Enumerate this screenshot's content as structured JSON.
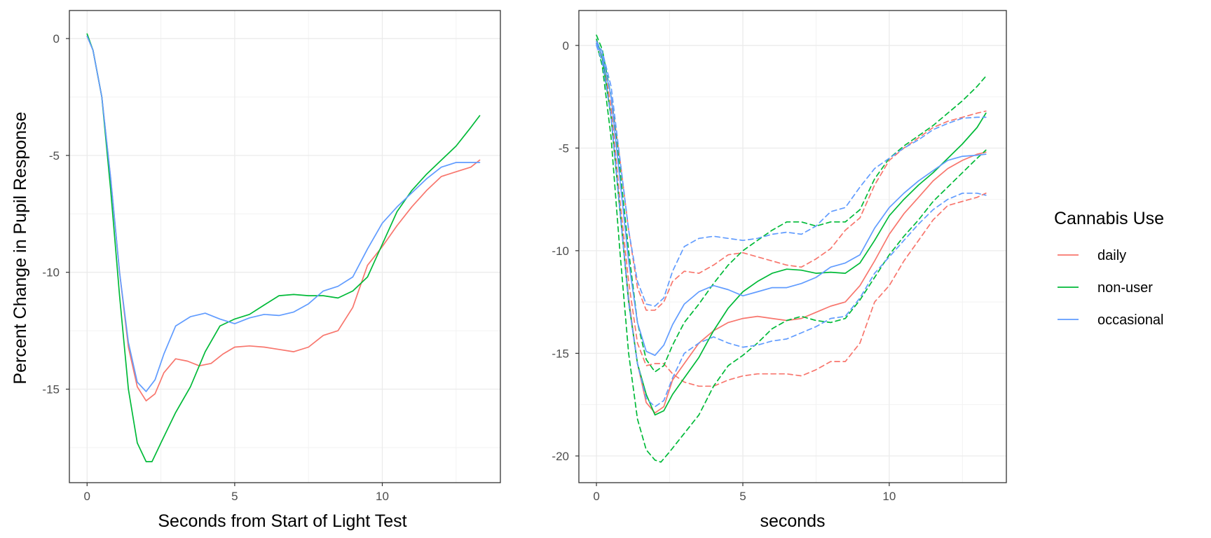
{
  "chart_data": [
    {
      "type": "line",
      "panel": "left",
      "title": "",
      "xlabel": "Seconds from Start of Light Test",
      "ylabel": "Percent Change in Pupil Response",
      "xlim": [
        -0.6,
        14.0
      ],
      "ylim": [
        -19.0,
        1.2
      ],
      "xticks": [
        0,
        5,
        10
      ],
      "yticks": [
        0,
        -5,
        -10,
        -15
      ],
      "grid": true,
      "series": [
        {
          "name": "daily",
          "color": "#F8766D",
          "x": [
            0,
            0.2,
            0.5,
            0.8,
            1.1,
            1.4,
            1.7,
            2.0,
            2.3,
            2.6,
            3.0,
            3.4,
            3.8,
            4.2,
            4.6,
            5.0,
            5.5,
            6.0,
            6.5,
            7.0,
            7.5,
            8.0,
            8.5,
            9.0,
            9.5,
            10.0,
            10.5,
            11.0,
            11.5,
            12.0,
            12.5,
            13.0,
            13.3
          ],
          "y": [
            0.1,
            -0.5,
            -2.5,
            -6.0,
            -10.0,
            -13.2,
            -14.9,
            -15.5,
            -15.2,
            -14.3,
            -13.7,
            -13.8,
            -14.0,
            -13.9,
            -13.5,
            -13.2,
            -13.15,
            -13.2,
            -13.3,
            -13.4,
            -13.2,
            -12.7,
            -12.5,
            -11.5,
            -9.7,
            -8.9,
            -8.0,
            -7.2,
            -6.5,
            -5.9,
            -5.7,
            -5.5,
            -5.2
          ]
        },
        {
          "name": "non-user",
          "color": "#00BA38",
          "x": [
            0,
            0.2,
            0.5,
            0.8,
            1.1,
            1.4,
            1.7,
            2.0,
            2.2,
            2.5,
            3.0,
            3.5,
            4.0,
            4.5,
            5.0,
            5.5,
            6.0,
            6.5,
            7.0,
            7.5,
            8.0,
            8.5,
            9.0,
            9.5,
            10.0,
            10.5,
            11.0,
            11.5,
            12.0,
            12.5,
            13.0,
            13.3
          ],
          "y": [
            0.2,
            -0.5,
            -2.5,
            -6.5,
            -11.0,
            -15.0,
            -17.3,
            -18.1,
            -18.1,
            -17.3,
            -16.0,
            -14.9,
            -13.4,
            -12.3,
            -12.0,
            -11.8,
            -11.4,
            -11.0,
            -10.95,
            -11.0,
            -11.0,
            -11.1,
            -10.8,
            -10.2,
            -8.8,
            -7.4,
            -6.5,
            -5.8,
            -5.2,
            -4.6,
            -3.8,
            -3.3
          ]
        },
        {
          "name": "occasional",
          "color": "#619CFF",
          "x": [
            0,
            0.2,
            0.5,
            0.8,
            1.1,
            1.4,
            1.7,
            2.0,
            2.3,
            2.6,
            3.0,
            3.5,
            4.0,
            4.5,
            5.0,
            5.5,
            6.0,
            6.5,
            7.0,
            7.5,
            8.0,
            8.5,
            9.0,
            9.5,
            10.0,
            10.5,
            11.0,
            11.5,
            12.0,
            12.5,
            13.0,
            13.3
          ],
          "y": [
            0.1,
            -0.5,
            -2.5,
            -6.0,
            -10.0,
            -13.0,
            -14.7,
            -15.1,
            -14.6,
            -13.5,
            -12.3,
            -11.9,
            -11.75,
            -12.0,
            -12.2,
            -11.95,
            -11.8,
            -11.85,
            -11.7,
            -11.35,
            -10.8,
            -10.6,
            -10.2,
            -9.0,
            -7.9,
            -7.2,
            -6.6,
            -6.0,
            -5.5,
            -5.3,
            -5.3,
            -5.3
          ]
        }
      ]
    },
    {
      "type": "line",
      "panel": "right",
      "title": "",
      "xlabel": "seconds",
      "ylabel": "",
      "xlim": [
        -0.6,
        14.0
      ],
      "ylim": [
        -21.3,
        1.7
      ],
      "xticks": [
        0,
        5,
        10
      ],
      "yticks": [
        0,
        -5,
        -10,
        -15,
        -20
      ],
      "grid": true,
      "note": "solid = estimate, dashed = upper/lower confidence bands",
      "series": [
        {
          "name": "daily",
          "color": "#F8766D",
          "style": "solid",
          "x": [
            0,
            0.2,
            0.5,
            0.8,
            1.1,
            1.4,
            1.7,
            2.0,
            2.3,
            2.6,
            3.0,
            3.5,
            4.0,
            4.5,
            5.0,
            5.5,
            6.0,
            6.5,
            7.0,
            7.5,
            8.0,
            8.5,
            9.0,
            9.5,
            10.0,
            10.5,
            11.0,
            11.5,
            12.0,
            12.5,
            13.0,
            13.3
          ],
          "y": [
            0.2,
            -0.6,
            -3.5,
            -8.0,
            -12.3,
            -15.5,
            -17.4,
            -17.9,
            -17.6,
            -16.3,
            -15.5,
            -14.5,
            -13.9,
            -13.5,
            -13.3,
            -13.2,
            -13.3,
            -13.4,
            -13.3,
            -13.0,
            -12.7,
            -12.5,
            -11.7,
            -10.5,
            -9.2,
            -8.2,
            -7.4,
            -6.6,
            -6.0,
            -5.6,
            -5.3,
            -5.2
          ]
        },
        {
          "name": "daily",
          "color": "#F8766D",
          "style": "dashed",
          "x": [
            0,
            0.2,
            0.5,
            0.8,
            1.1,
            1.4,
            1.7,
            2.0,
            2.3,
            2.6,
            3.0,
            3.5,
            4.0,
            4.5,
            5.0,
            5.5,
            6.0,
            6.5,
            7.0,
            7.5,
            8.0,
            8.5,
            9.0,
            9.5,
            10.0,
            10.5,
            11.0,
            11.5,
            12.0,
            12.5,
            13.0,
            13.3
          ],
          "y": [
            0.1,
            -0.5,
            -2.5,
            -5.5,
            -9.0,
            -11.8,
            -12.9,
            -12.9,
            -12.5,
            -11.5,
            -11.0,
            -11.1,
            -10.7,
            -10.2,
            -10.1,
            -10.3,
            -10.5,
            -10.7,
            -10.8,
            -10.4,
            -9.9,
            -9.0,
            -8.4,
            -6.8,
            -5.6,
            -5.0,
            -4.5,
            -4.0,
            -3.7,
            -3.5,
            -3.3,
            -3.2
          ]
        },
        {
          "name": "daily",
          "color": "#F8766D",
          "style": "dashed",
          "x": [
            0,
            0.2,
            0.5,
            0.8,
            1.1,
            1.4,
            1.7,
            2.0,
            2.3,
            2.6,
            3.0,
            3.5,
            4.0,
            4.5,
            5.0,
            5.5,
            6.0,
            6.5,
            7.0,
            7.5,
            8.0,
            8.5,
            9.0,
            9.5,
            10.0,
            10.5,
            11.0,
            11.5,
            12.0,
            12.5,
            13.0,
            13.3
          ],
          "y": [
            0.1,
            -0.5,
            -3.0,
            -7.5,
            -11.5,
            -14.5,
            -15.6,
            -15.5,
            -15.5,
            -16.0,
            -16.4,
            -16.6,
            -16.6,
            -16.3,
            -16.1,
            -16.0,
            -16.0,
            -16.0,
            -16.1,
            -15.8,
            -15.4,
            -15.4,
            -14.5,
            -12.5,
            -11.7,
            -10.5,
            -9.5,
            -8.5,
            -7.8,
            -7.6,
            -7.4,
            -7.2
          ]
        },
        {
          "name": "non-user",
          "color": "#00BA38",
          "style": "solid",
          "x": [
            0,
            0.2,
            0.5,
            0.8,
            1.1,
            1.4,
            1.7,
            2.0,
            2.3,
            2.6,
            3.0,
            3.5,
            4.0,
            4.5,
            5.0,
            5.5,
            6.0,
            6.5,
            7.0,
            7.5,
            8.0,
            8.5,
            9.0,
            9.5,
            10.0,
            10.5,
            11.0,
            11.5,
            12.0,
            12.5,
            13.0,
            13.3
          ],
          "y": [
            0.3,
            -0.6,
            -3.5,
            -8.0,
            -12.5,
            -15.5,
            -17.0,
            -18.0,
            -17.8,
            -17.0,
            -16.2,
            -15.2,
            -13.9,
            -12.8,
            -12.0,
            -11.5,
            -11.1,
            -10.9,
            -10.95,
            -11.1,
            -11.05,
            -11.1,
            -10.6,
            -9.5,
            -8.3,
            -7.5,
            -6.8,
            -6.2,
            -5.5,
            -4.8,
            -4.0,
            -3.3
          ]
        },
        {
          "name": "non-user",
          "color": "#00BA38",
          "style": "dashed",
          "x": [
            0,
            0.2,
            0.5,
            0.8,
            1.1,
            1.4,
            1.7,
            2.0,
            2.3,
            2.6,
            3.0,
            3.5,
            4.0,
            4.5,
            5.0,
            5.5,
            6.0,
            6.5,
            7.0,
            7.5,
            8.0,
            8.5,
            9.0,
            9.5,
            10.0,
            10.5,
            11.0,
            11.5,
            12.0,
            12.5,
            13.0,
            13.3
          ],
          "y": [
            0.5,
            -0.2,
            -2.5,
            -6.0,
            -10.0,
            -13.5,
            -15.3,
            -15.9,
            -15.6,
            -14.6,
            -13.5,
            -12.6,
            -11.6,
            -10.7,
            -10.0,
            -9.5,
            -9.0,
            -8.6,
            -8.6,
            -8.8,
            -8.6,
            -8.6,
            -8.0,
            -6.5,
            -5.5,
            -4.9,
            -4.4,
            -3.9,
            -3.3,
            -2.7,
            -2.0,
            -1.5
          ]
        },
        {
          "name": "non-user",
          "color": "#00BA38",
          "style": "dashed",
          "x": [
            0,
            0.2,
            0.5,
            0.8,
            1.1,
            1.4,
            1.7,
            2.0,
            2.2,
            2.5,
            3.0,
            3.5,
            4.0,
            4.5,
            5.0,
            5.5,
            6.0,
            6.5,
            7.0,
            7.5,
            8.0,
            8.5,
            9.0,
            9.5,
            10.0,
            10.5,
            11.0,
            11.5,
            12.0,
            12.5,
            13.0,
            13.3
          ],
          "y": [
            0.1,
            -1.0,
            -4.5,
            -10.0,
            -15.0,
            -18.2,
            -19.7,
            -20.2,
            -20.3,
            -19.8,
            -18.9,
            -18.0,
            -16.6,
            -15.6,
            -15.1,
            -14.5,
            -13.8,
            -13.4,
            -13.2,
            -13.4,
            -13.5,
            -13.3,
            -12.4,
            -11.3,
            -10.2,
            -9.3,
            -8.5,
            -7.6,
            -6.9,
            -6.2,
            -5.5,
            -5.1
          ]
        },
        {
          "name": "occasional",
          "color": "#619CFF",
          "style": "solid",
          "x": [
            0,
            0.2,
            0.5,
            0.8,
            1.1,
            1.4,
            1.7,
            2.0,
            2.3,
            2.6,
            3.0,
            3.5,
            4.0,
            4.5,
            5.0,
            5.5,
            6.0,
            6.5,
            7.0,
            7.5,
            8.0,
            8.5,
            9.0,
            9.5,
            10.0,
            10.5,
            11.0,
            11.5,
            12.0,
            12.5,
            13.0,
            13.3
          ],
          "y": [
            0.1,
            -0.5,
            -2.5,
            -6.5,
            -10.5,
            -13.5,
            -14.9,
            -15.1,
            -14.6,
            -13.6,
            -12.6,
            -12.0,
            -11.7,
            -11.9,
            -12.2,
            -12.0,
            -11.8,
            -11.8,
            -11.6,
            -11.3,
            -10.8,
            -10.6,
            -10.2,
            -8.9,
            -7.9,
            -7.2,
            -6.6,
            -6.1,
            -5.6,
            -5.4,
            -5.35,
            -5.3
          ]
        },
        {
          "name": "occasional",
          "color": "#619CFF",
          "style": "dashed",
          "x": [
            0,
            0.2,
            0.5,
            0.8,
            1.1,
            1.4,
            1.7,
            2.0,
            2.3,
            2.6,
            3.0,
            3.5,
            4.0,
            4.5,
            5.0,
            5.5,
            6.0,
            6.5,
            7.0,
            7.5,
            8.0,
            8.5,
            9.0,
            9.5,
            10.0,
            10.5,
            11.0,
            11.5,
            12.0,
            12.5,
            13.0,
            13.3
          ],
          "y": [
            0.2,
            -0.3,
            -2.0,
            -5.5,
            -9.0,
            -11.5,
            -12.6,
            -12.7,
            -12.3,
            -11.0,
            -9.8,
            -9.4,
            -9.3,
            -9.4,
            -9.5,
            -9.4,
            -9.2,
            -9.1,
            -9.2,
            -8.8,
            -8.1,
            -7.9,
            -6.9,
            -6.0,
            -5.5,
            -5.0,
            -4.6,
            -4.1,
            -3.8,
            -3.55,
            -3.5,
            -3.5
          ]
        },
        {
          "name": "occasional",
          "color": "#619CFF",
          "style": "dashed",
          "x": [
            0,
            0.2,
            0.5,
            0.8,
            1.1,
            1.4,
            1.7,
            2.0,
            2.3,
            2.6,
            3.0,
            3.5,
            4.0,
            4.5,
            5.0,
            5.5,
            6.0,
            6.5,
            7.0,
            7.5,
            8.0,
            8.5,
            9.0,
            9.5,
            10.0,
            10.5,
            11.0,
            11.5,
            12.0,
            12.5,
            13.0,
            13.3
          ],
          "y": [
            0.0,
            -0.8,
            -3.5,
            -8.0,
            -12.5,
            -15.5,
            -17.2,
            -17.6,
            -17.3,
            -16.2,
            -15.0,
            -14.5,
            -14.2,
            -14.5,
            -14.7,
            -14.6,
            -14.4,
            -14.3,
            -14.0,
            -13.7,
            -13.3,
            -13.2,
            -12.3,
            -11.1,
            -10.3,
            -9.5,
            -8.7,
            -8.0,
            -7.5,
            -7.2,
            -7.2,
            -7.3
          ]
        }
      ]
    }
  ],
  "legend": {
    "title": "Cannabis Use",
    "entries": [
      {
        "label": "daily",
        "color": "#F8766D"
      },
      {
        "label": "non-user",
        "color": "#00BA38"
      },
      {
        "label": "occasional",
        "color": "#619CFF"
      }
    ]
  }
}
